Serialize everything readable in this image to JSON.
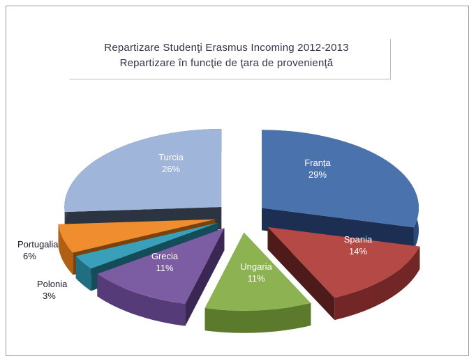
{
  "chart_data": {
    "type": "pie",
    "title": "Repartizare Studenţi Erasmus Incoming 2012-2013",
    "subtitle": "Repartizare în funcţie de ţara de provenienţă",
    "slices": [
      {
        "label": "Franța",
        "value": 29,
        "value_label": "29%",
        "color": "#4a72ad",
        "side": "#2a4a7e",
        "dark": "#1c2f53"
      },
      {
        "label": "Spania",
        "value": 14,
        "value_label": "14%",
        "color": "#b44946",
        "side": "#722626",
        "dark": "#4f1a1a"
      },
      {
        "label": "Ungaria",
        "value": 11,
        "value_label": "11%",
        "color": "#8db251",
        "side": "#5c7a2b",
        "dark": "#3f551c"
      },
      {
        "label": "Grecia",
        "value": 11,
        "value_label": "11%",
        "color": "#7c5da3",
        "side": "#553c78",
        "dark": "#3a2754"
      },
      {
        "label": "Polonia",
        "value": 3,
        "value_label": "3%",
        "color": "#3aa0b9",
        "side": "#1f6e82",
        "dark": "#144c5a"
      },
      {
        "label": "Portugalia",
        "value": 6,
        "value_label": "6%",
        "color": "#f08d2f",
        "side": "#b05f14",
        "dark": "#7a420d"
      },
      {
        "label": "Turcia",
        "value": 26,
        "value_label": "26%",
        "color": "#9fb5d9",
        "side": "#3a4455",
        "dark": "#2c3441"
      }
    ]
  }
}
